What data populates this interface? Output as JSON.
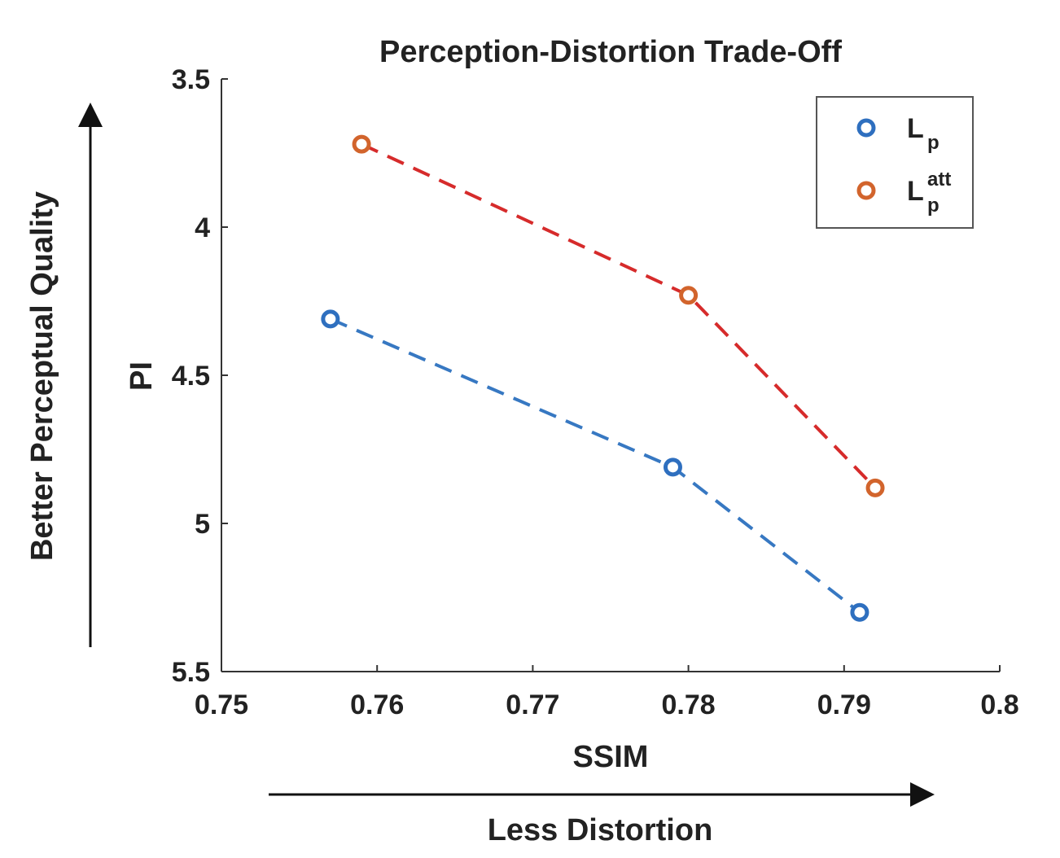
{
  "chart_data": {
    "type": "line",
    "title": "Perception-Distortion Trade-Off",
    "xlabel": "SSIM",
    "ylabel": "PI",
    "xlim": [
      0.75,
      0.8
    ],
    "ylim": [
      3.5,
      5.5
    ],
    "y_reversed": true,
    "x_ticks": [
      "0.75",
      "0.76",
      "0.77",
      "0.78",
      "0.79",
      "0.8"
    ],
    "y_ticks": [
      "3.5",
      "4",
      "4.5",
      "5",
      "5.5"
    ],
    "grid": false,
    "legend_position": "top-right",
    "series": [
      {
        "name": "L_p",
        "legend_main": "L",
        "legend_sub": "p",
        "legend_sup": "",
        "color": "#2e6fbf",
        "line_color": "#3778c2",
        "points": [
          {
            "x": 0.757,
            "y": 4.31
          },
          {
            "x": 0.779,
            "y": 4.81
          },
          {
            "x": 0.791,
            "y": 5.3
          }
        ]
      },
      {
        "name": "L_p^att",
        "legend_main": "L",
        "legend_sub": "p",
        "legend_sup": "att",
        "color": "#d2642c",
        "line_color": "#d62b2b",
        "points": [
          {
            "x": 0.759,
            "y": 3.72
          },
          {
            "x": 0.78,
            "y": 4.23
          },
          {
            "x": 0.792,
            "y": 4.88
          }
        ]
      }
    ],
    "annotations": {
      "left_arrow_label": "Better Perceptual Quality",
      "bottom_arrow_label": "Less Distortion"
    }
  }
}
